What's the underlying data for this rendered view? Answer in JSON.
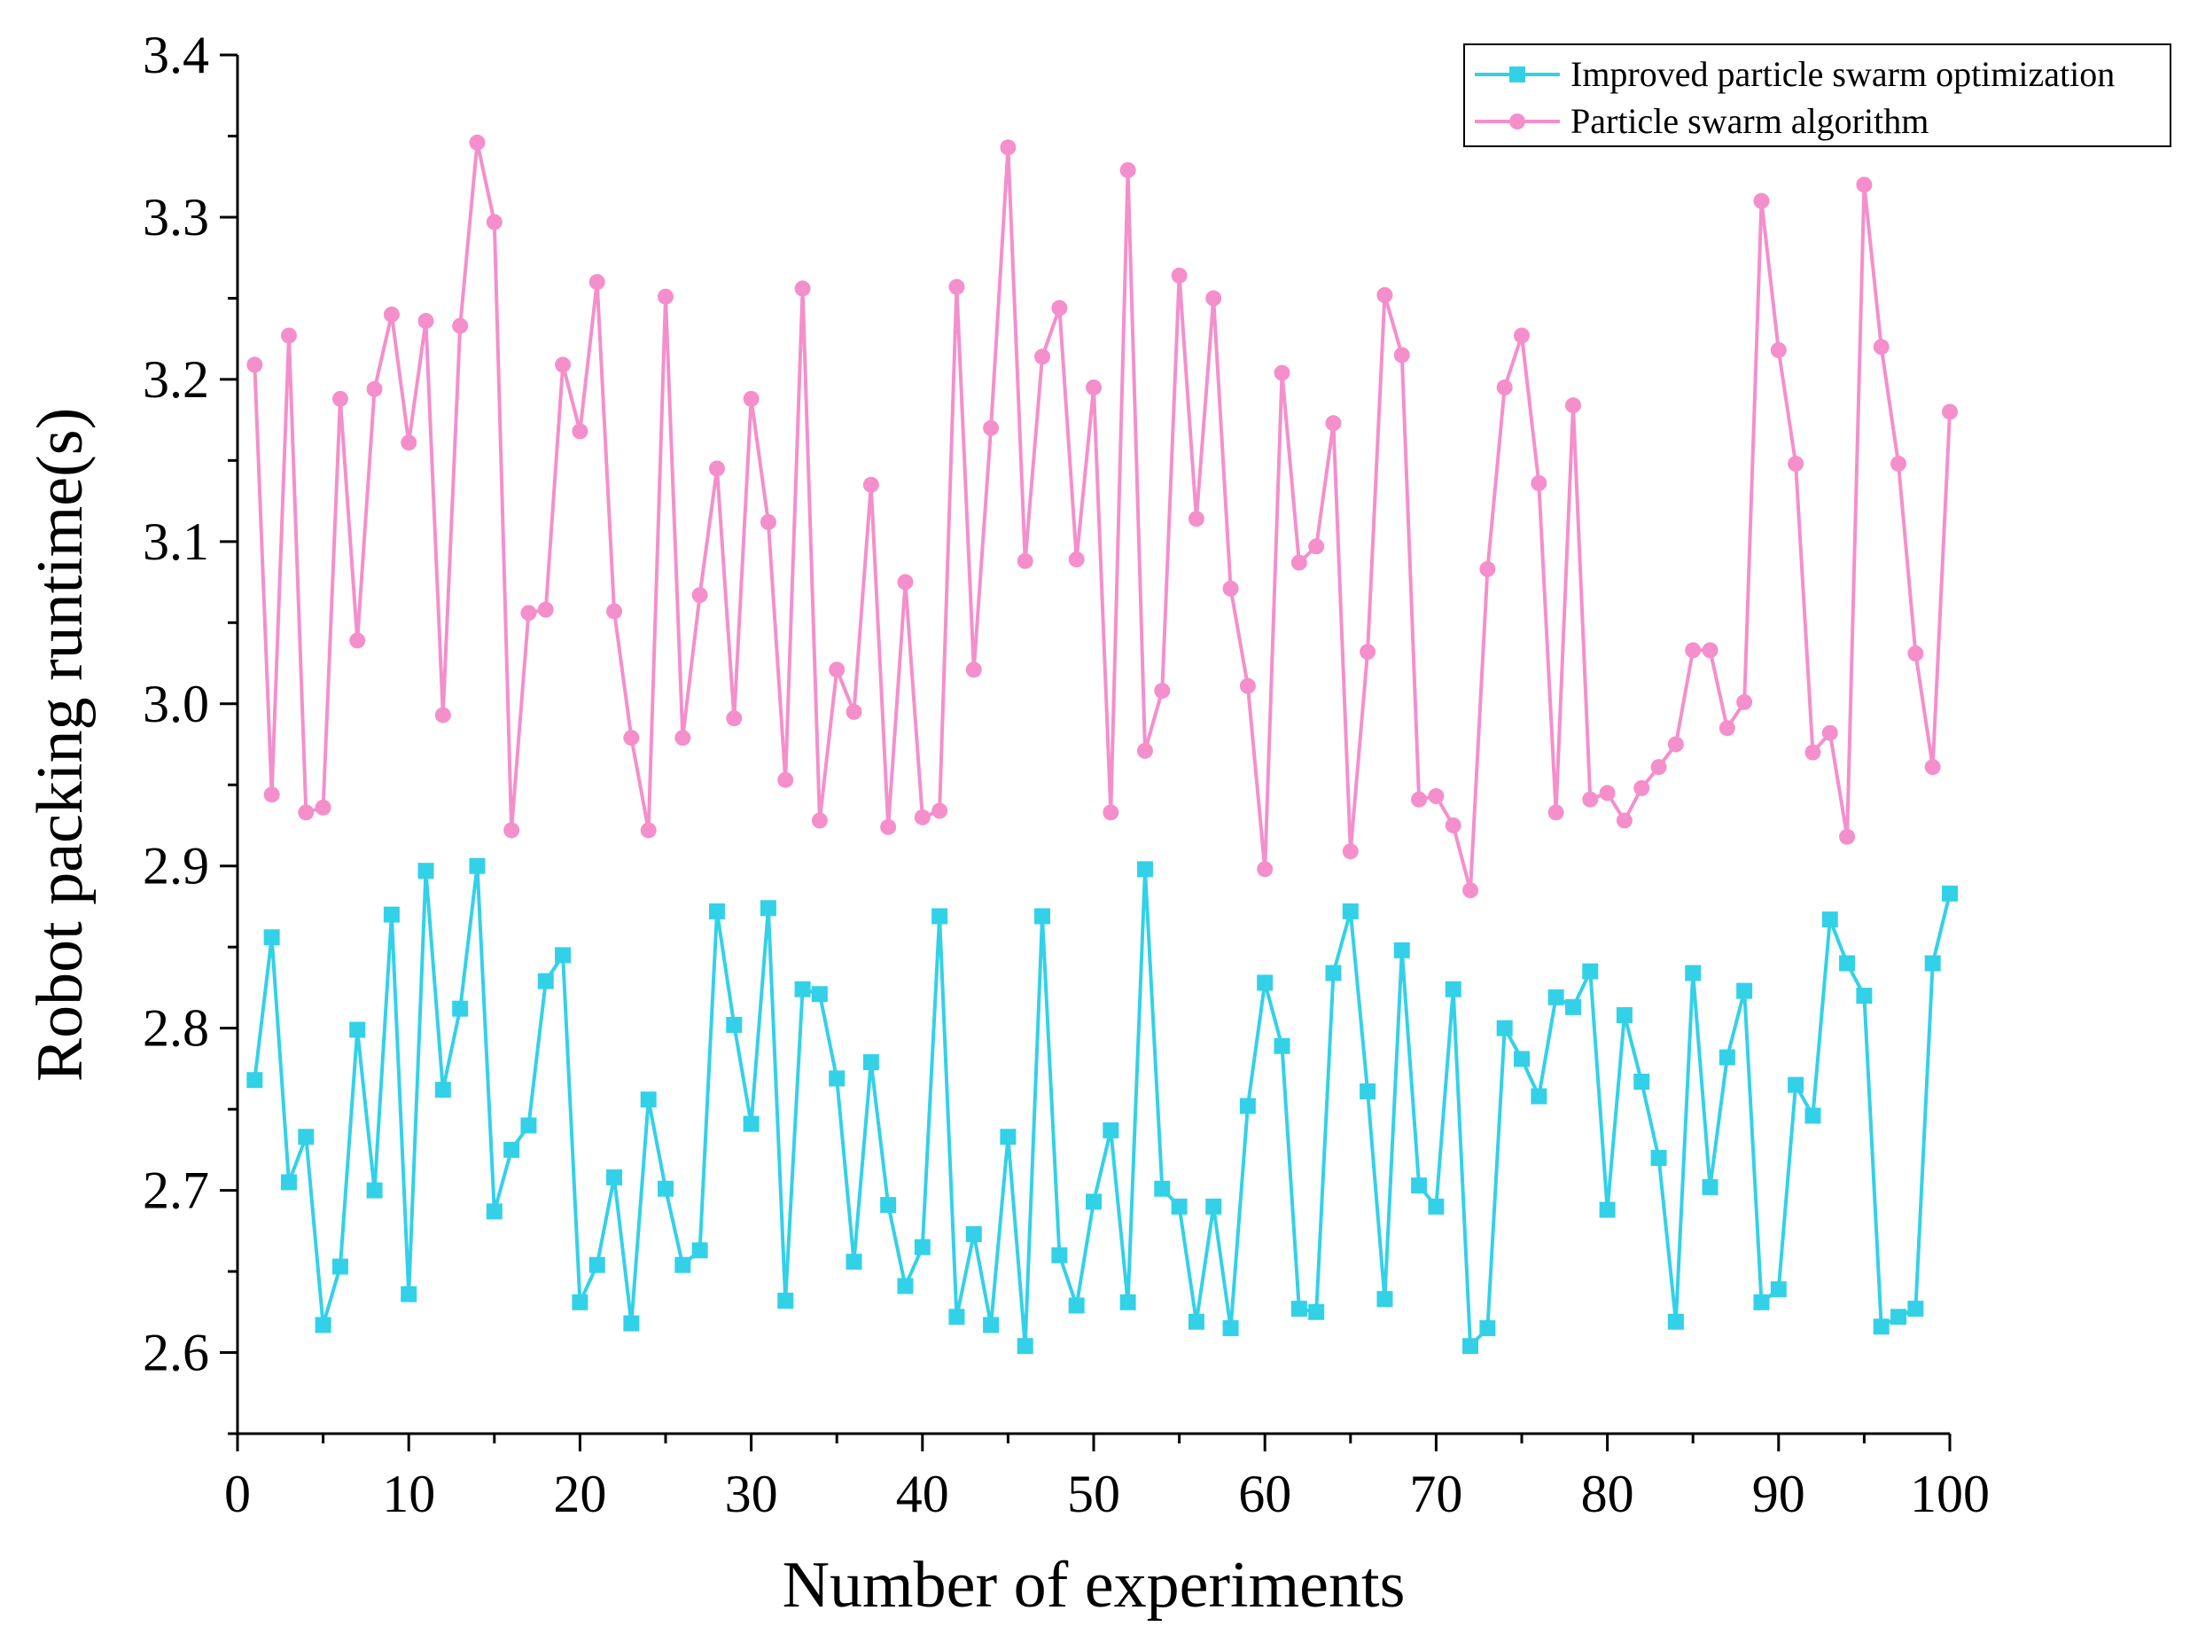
{
  "chart_data": {
    "type": "line",
    "title": "",
    "xlabel": "Number of experiments",
    "ylabel": "Robot packing runtime(s)",
    "xlim": [
      0,
      100
    ],
    "ylim": [
      2.55,
      3.4
    ],
    "xticks": [
      0,
      10,
      20,
      30,
      40,
      50,
      60,
      70,
      80,
      90,
      100
    ],
    "yticks": [
      2.6,
      2.7,
      2.8,
      2.9,
      3.0,
      3.1,
      3.2,
      3.3,
      3.4
    ],
    "xtick_labels": [
      "0",
      "10",
      "20",
      "30",
      "40",
      "50",
      "60",
      "70",
      "80",
      "90",
      "100"
    ],
    "ytick_labels": [
      "2.6",
      "2.7",
      "2.8",
      "2.9",
      "3.0",
      "3.1",
      "3.2",
      "3.3",
      "3.4"
    ],
    "grid": false,
    "legend_position": "top-right",
    "x": [
      1,
      2,
      3,
      4,
      5,
      6,
      7,
      8,
      9,
      10,
      11,
      12,
      13,
      14,
      15,
      16,
      17,
      18,
      19,
      20,
      21,
      22,
      23,
      24,
      25,
      26,
      27,
      28,
      29,
      30,
      31,
      32,
      33,
      34,
      35,
      36,
      37,
      38,
      39,
      40,
      41,
      42,
      43,
      44,
      45,
      46,
      47,
      48,
      49,
      50,
      51,
      52,
      53,
      54,
      55,
      56,
      57,
      58,
      59,
      60,
      61,
      62,
      63,
      64,
      65,
      66,
      67,
      68,
      69,
      70,
      71,
      72,
      73,
      74,
      75,
      76,
      77,
      78,
      79,
      80,
      81,
      82,
      83,
      84,
      85,
      86,
      87,
      88,
      89,
      90,
      91,
      92,
      93,
      94,
      95,
      96,
      97,
      98,
      99,
      100
    ],
    "series": [
      {
        "name": "Improved particle swarm optimization",
        "color": "#33d1e8",
        "marker": "square",
        "values": [
          2.768,
          2.856,
          2.705,
          2.733,
          2.617,
          2.653,
          2.799,
          2.7,
          2.87,
          2.636,
          2.897,
          2.762,
          2.812,
          2.9,
          2.687,
          2.725,
          2.74,
          2.829,
          2.845,
          2.631,
          2.654,
          2.708,
          2.618,
          2.756,
          2.701,
          2.654,
          2.663,
          2.872,
          2.802,
          2.741,
          2.874,
          2.632,
          2.824,
          2.821,
          2.769,
          2.656,
          2.779,
          2.691,
          2.641,
          2.665,
          2.869,
          2.622,
          2.673,
          2.617,
          2.733,
          2.604,
          2.869,
          2.66,
          2.629,
          2.693,
          2.737,
          2.631,
          2.898,
          2.701,
          2.69,
          2.619,
          2.69,
          2.615,
          2.752,
          2.828,
          2.789,
          2.627,
          2.625,
          2.834,
          2.872,
          2.761,
          2.633,
          2.848,
          2.703,
          2.69,
          2.824,
          2.604,
          2.615,
          2.8,
          2.781,
          2.758,
          2.819,
          2.813,
          2.835,
          2.688,
          2.808,
          2.767,
          2.72,
          2.619,
          2.834,
          2.702,
          2.782,
          2.823,
          2.631,
          2.639,
          2.765,
          2.746,
          2.867,
          2.84,
          2.82,
          2.616,
          2.622,
          2.627,
          2.84,
          2.883
        ]
      },
      {
        "name": "Particle swarm algorithm",
        "color": "#f48fcc",
        "marker": "circle",
        "values": [
          3.209,
          2.944,
          3.227,
          2.933,
          2.936,
          3.188,
          3.039,
          3.194,
          3.24,
          3.161,
          3.236,
          2.993,
          3.233,
          3.346,
          3.297,
          2.922,
          3.056,
          3.058,
          3.209,
          3.168,
          3.26,
          3.057,
          2.979,
          2.922,
          3.251,
          2.979,
          3.067,
          3.145,
          2.991,
          3.188,
          3.112,
          2.953,
          3.256,
          2.928,
          3.021,
          2.995,
          3.135,
          2.924,
          3.075,
          2.93,
          2.934,
          3.257,
          3.021,
          3.17,
          3.343,
          3.088,
          3.214,
          3.244,
          3.089,
          3.195,
          2.933,
          3.329,
          2.971,
          3.008,
          3.264,
          3.114,
          3.25,
          3.071,
          3.011,
          2.898,
          3.204,
          3.087,
          3.097,
          3.173,
          2.909,
          3.032,
          3.252,
          3.215,
          2.941,
          2.943,
          2.925,
          2.885,
          3.083,
          3.195,
          3.227,
          3.136,
          2.933,
          3.184,
          2.941,
          2.945,
          2.928,
          2.948,
          2.961,
          2.975,
          3.033,
          3.033,
          2.985,
          3.001,
          3.31,
          3.218,
          3.148,
          2.97,
          2.982,
          2.918,
          3.32,
          3.22,
          3.148,
          3.031,
          2.961,
          3.18
        ]
      }
    ]
  }
}
